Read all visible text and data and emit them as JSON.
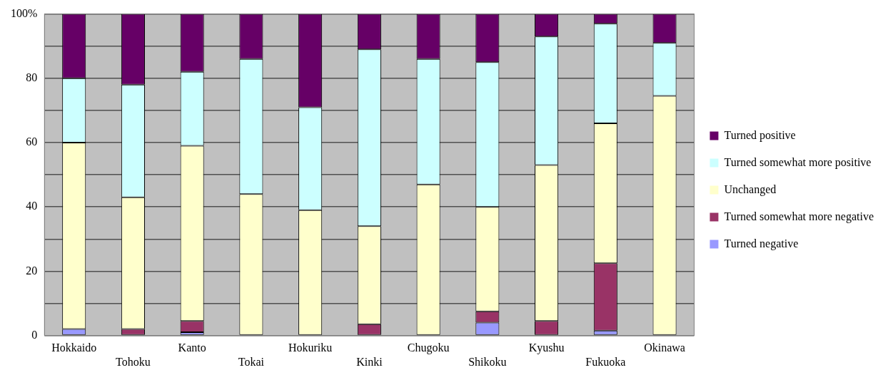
{
  "chart_data": {
    "type": "bar",
    "stacked": true,
    "categories": [
      "Hokkaido",
      "Tohoku",
      "Kanto",
      "Tokai",
      "Hokuriku",
      "Kinki",
      "Chugoku",
      "Shikoku",
      "Kyushu",
      "Fukuoka",
      "Okinawa"
    ],
    "series": [
      {
        "name": "Turned negative",
        "color": "#9999ff",
        "values": [
          2,
          0,
          1,
          0,
          0,
          0,
          0,
          4,
          0,
          1.5,
          0
        ]
      },
      {
        "name": "Turned somewhat more negative",
        "color": "#993366",
        "values": [
          0,
          2,
          3.5,
          0,
          0,
          3.5,
          0,
          3.5,
          4.5,
          21,
          0
        ]
      },
      {
        "name": "Unchanged",
        "color": "#ffffcc",
        "values": [
          58,
          41,
          54.5,
          44,
          39,
          30.5,
          47,
          32.5,
          48.5,
          43.5,
          74.5
        ]
      },
      {
        "name": "Turned somewhat more positive",
        "color": "#ccffff",
        "values": [
          20,
          35,
          23,
          42,
          32,
          55,
          39,
          45,
          40,
          31,
          16.5
        ]
      },
      {
        "name": "Turned positive",
        "color": "#660066",
        "values": [
          20,
          22,
          18,
          14,
          29,
          11,
          14,
          15,
          7,
          3,
          9
        ]
      }
    ],
    "ylim": [
      0,
      100
    ],
    "yticks": [
      0,
      {
        "value": 10,
        "label": null
      },
      20,
      {
        "value": 30,
        "label": null
      },
      40,
      {
        "value": 50,
        "label": null
      },
      60,
      {
        "value": 70,
        "label": null
      },
      80,
      {
        "value": 90,
        "label": null
      },
      {
        "value": 100,
        "label": "100%"
      }
    ],
    "grid": "y",
    "legend": "right"
  }
}
